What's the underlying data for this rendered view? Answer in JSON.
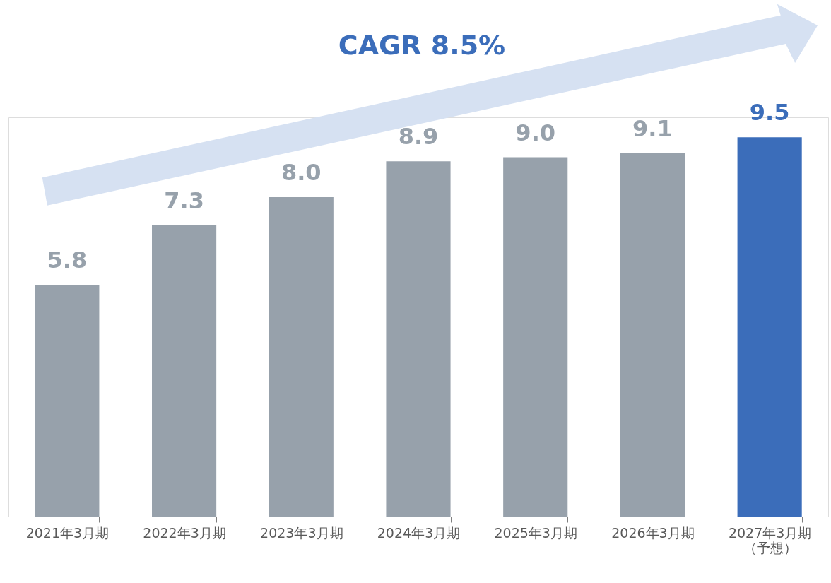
{
  "chart_data": {
    "type": "bar",
    "categories": [
      "2021年3月期",
      "2022年3月期",
      "2023年3月期",
      "2024年3月期",
      "2025年3月期",
      "2026年3月期",
      "2027年3月期（予想）"
    ],
    "values": [
      5.8,
      7.3,
      8.0,
      8.9,
      9.0,
      9.1,
      9.5
    ],
    "value_labels": [
      "5.8",
      "7.3",
      "8.0",
      "8.9",
      "9.0",
      "9.1",
      "9.5"
    ],
    "colors": [
      "#97a1ab",
      "#97a1ab",
      "#97a1ab",
      "#97a1ab",
      "#97a1ab",
      "#97a1ab",
      "#3b6dba"
    ],
    "annotations": [
      "CAGR 8.5%"
    ],
    "grid": false
  }
}
